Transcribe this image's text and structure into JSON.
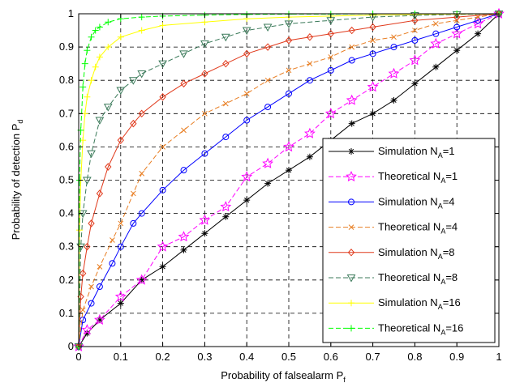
{
  "chart_data": {
    "type": "line",
    "xlabel": "Probability of falsealarm P",
    "xlabel_sub": "f",
    "ylabel": "Probability of detection P",
    "ylabel_sub": "d",
    "xlim": [
      0,
      1
    ],
    "ylim": [
      0,
      1
    ],
    "xticks": [
      "0",
      "0.1",
      "0.2",
      "0.3",
      "0.4",
      "0.5",
      "0.6",
      "0.7",
      "0.8",
      "0.9",
      "1"
    ],
    "yticks": [
      "0",
      "0.1",
      "0.2",
      "0.3",
      "0.4",
      "0.5",
      "0.6",
      "0.7",
      "0.8",
      "0.9",
      "1"
    ],
    "grid": true,
    "legend_position": "bottom-right",
    "series": [
      {
        "name": "Simulation N_A=1",
        "label": "Simulation N",
        "sub": "A",
        "suffix": "=1",
        "color": "#000000",
        "marker": "star",
        "dash": "solid",
        "x": [
          0,
          0.02,
          0.05,
          0.1,
          0.15,
          0.2,
          0.25,
          0.3,
          0.35,
          0.4,
          0.45,
          0.5,
          0.55,
          0.6,
          0.65,
          0.7,
          0.75,
          0.8,
          0.85,
          0.9,
          0.95,
          1.0
        ],
        "y": [
          0,
          0.04,
          0.08,
          0.13,
          0.2,
          0.24,
          0.29,
          0.34,
          0.39,
          0.44,
          0.49,
          0.53,
          0.57,
          0.62,
          0.67,
          0.7,
          0.74,
          0.79,
          0.84,
          0.89,
          0.94,
          1.0
        ]
      },
      {
        "name": "Theoretical N_A=1",
        "label": "Theoretical N",
        "sub": "A",
        "suffix": "=1",
        "color": "#ff00ff",
        "marker": "hexagram",
        "dash": "dash",
        "x": [
          0,
          0.02,
          0.05,
          0.1,
          0.15,
          0.2,
          0.25,
          0.3,
          0.35,
          0.4,
          0.45,
          0.5,
          0.55,
          0.6,
          0.65,
          0.7,
          0.75,
          0.8,
          0.85,
          0.9,
          0.95,
          1.0
        ],
        "y": [
          0,
          0.05,
          0.08,
          0.15,
          0.2,
          0.3,
          0.33,
          0.38,
          0.42,
          0.51,
          0.55,
          0.6,
          0.64,
          0.7,
          0.74,
          0.78,
          0.82,
          0.86,
          0.91,
          0.94,
          0.97,
          1.0
        ]
      },
      {
        "name": "Simulation N_A=4",
        "label": "Simulation N",
        "sub": "A",
        "suffix": "=4",
        "color": "#0000ff",
        "marker": "circle",
        "dash": "solid",
        "x": [
          0,
          0.01,
          0.03,
          0.05,
          0.08,
          0.1,
          0.13,
          0.15,
          0.2,
          0.25,
          0.3,
          0.35,
          0.4,
          0.45,
          0.5,
          0.55,
          0.6,
          0.65,
          0.7,
          0.75,
          0.8,
          0.85,
          0.9,
          0.95,
          1.0
        ],
        "y": [
          0,
          0.08,
          0.13,
          0.18,
          0.25,
          0.3,
          0.37,
          0.4,
          0.47,
          0.53,
          0.58,
          0.63,
          0.68,
          0.72,
          0.76,
          0.8,
          0.83,
          0.86,
          0.88,
          0.9,
          0.92,
          0.94,
          0.96,
          0.98,
          1.0
        ]
      },
      {
        "name": "Theoretical N_A=4",
        "label": "Theoretical N",
        "sub": "A",
        "suffix": "=4",
        "color": "#e87e23",
        "marker": "x",
        "dash": "dash",
        "x": [
          0,
          0.01,
          0.03,
          0.05,
          0.08,
          0.1,
          0.13,
          0.15,
          0.2,
          0.25,
          0.3,
          0.35,
          0.4,
          0.45,
          0.5,
          0.55,
          0.6,
          0.65,
          0.7,
          0.75,
          0.8,
          0.85,
          0.9,
          0.95,
          1.0
        ],
        "y": [
          0,
          0.11,
          0.18,
          0.24,
          0.32,
          0.37,
          0.46,
          0.52,
          0.6,
          0.65,
          0.7,
          0.73,
          0.76,
          0.8,
          0.83,
          0.85,
          0.87,
          0.9,
          0.92,
          0.93,
          0.95,
          0.97,
          0.98,
          0.99,
          1.0
        ]
      },
      {
        "name": "Simulation N_A=8",
        "label": "Simulation N",
        "sub": "A",
        "suffix": "=8",
        "color": "#e0391b",
        "marker": "diamond",
        "dash": "solid",
        "x": [
          0,
          0.005,
          0.01,
          0.02,
          0.03,
          0.05,
          0.07,
          0.1,
          0.13,
          0.15,
          0.2,
          0.25,
          0.3,
          0.35,
          0.4,
          0.45,
          0.5,
          0.55,
          0.6,
          0.65,
          0.7,
          0.8,
          0.9,
          1.0
        ],
        "y": [
          0,
          0.15,
          0.22,
          0.3,
          0.37,
          0.46,
          0.54,
          0.62,
          0.67,
          0.7,
          0.75,
          0.79,
          0.82,
          0.85,
          0.88,
          0.9,
          0.92,
          0.93,
          0.94,
          0.95,
          0.96,
          0.98,
          0.99,
          1.0
        ]
      },
      {
        "name": "Theoretical N_A=8",
        "label": "Theoretical N",
        "sub": "A",
        "suffix": "=8",
        "color": "#3b7a5a",
        "marker": "triangle-down",
        "dash": "dash",
        "x": [
          0,
          0.005,
          0.01,
          0.02,
          0.03,
          0.05,
          0.07,
          0.1,
          0.13,
          0.15,
          0.2,
          0.25,
          0.3,
          0.35,
          0.4,
          0.45,
          0.5,
          0.6,
          0.7,
          0.8,
          0.9,
          1.0
        ],
        "y": [
          0,
          0.3,
          0.4,
          0.5,
          0.58,
          0.68,
          0.72,
          0.77,
          0.8,
          0.82,
          0.85,
          0.88,
          0.91,
          0.93,
          0.95,
          0.96,
          0.97,
          0.98,
          0.99,
          0.995,
          0.998,
          1.0
        ]
      },
      {
        "name": "Simulation N_A=16",
        "label": "Simulation N",
        "sub": "A",
        "suffix": "=16",
        "color": "#ffff00",
        "marker": "plus",
        "dash": "solid",
        "x": [
          0,
          0.002,
          0.005,
          0.01,
          0.015,
          0.02,
          0.03,
          0.04,
          0.05,
          0.07,
          0.1,
          0.15,
          0.2,
          0.3,
          0.4,
          0.5,
          0.6,
          0.7,
          0.8,
          0.9,
          1.0
        ],
        "y": [
          0,
          0.35,
          0.5,
          0.62,
          0.7,
          0.75,
          0.8,
          0.84,
          0.87,
          0.9,
          0.93,
          0.95,
          0.965,
          0.975,
          0.985,
          0.99,
          0.993,
          0.996,
          0.998,
          0.999,
          1.0
        ]
      },
      {
        "name": "Theoretical N_A=16",
        "label": "Theoretical N",
        "sub": "A",
        "suffix": "=16",
        "color": "#00ff00",
        "marker": "plus",
        "dash": "dash",
        "x": [
          0,
          0.002,
          0.005,
          0.01,
          0.015,
          0.02,
          0.03,
          0.04,
          0.05,
          0.07,
          0.1,
          0.15,
          0.2,
          0.3,
          0.4,
          0.5,
          0.6,
          0.7,
          0.8,
          0.9,
          1.0
        ],
        "y": [
          0,
          0.5,
          0.65,
          0.78,
          0.85,
          0.89,
          0.93,
          0.95,
          0.96,
          0.975,
          0.985,
          0.99,
          0.993,
          0.996,
          0.998,
          0.999,
          0.999,
          1.0,
          1.0,
          1.0,
          1.0
        ]
      }
    ]
  }
}
